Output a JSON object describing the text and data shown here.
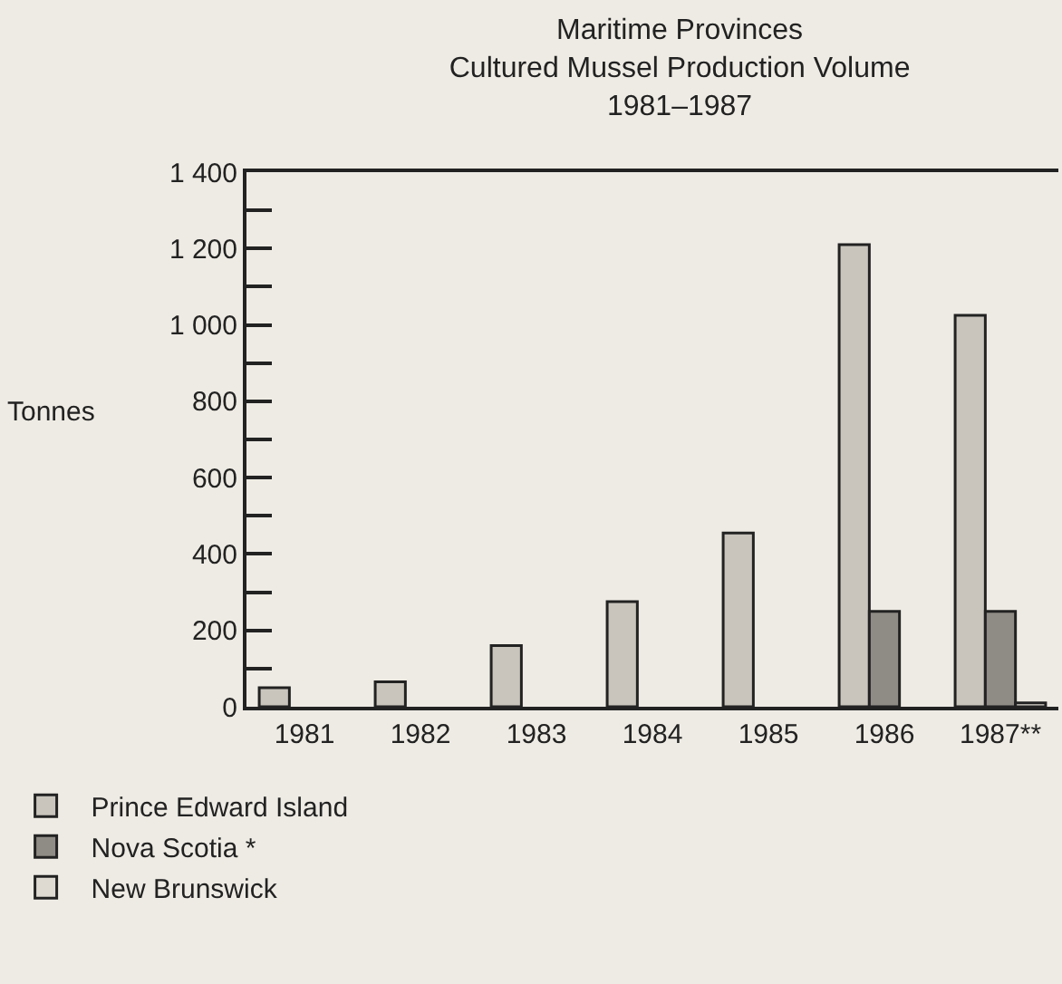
{
  "chart_data": {
    "type": "bar",
    "title": "Maritime Provinces\nCultured Mussel Production Volume\n1981–1987",
    "ylabel": "Tonnes",
    "categories": [
      "1981",
      "1982",
      "1983",
      "1984",
      "1985",
      "1986",
      "1987**"
    ],
    "series": [
      {
        "name": "Prince Edward Island",
        "color": "#c9c5bd",
        "values": [
          50,
          65,
          160,
          275,
          455,
          1210,
          1025
        ]
      },
      {
        "name": "Nova Scotia *",
        "color": "#8f8b85",
        "values": [
          null,
          null,
          null,
          null,
          null,
          250,
          250
        ]
      },
      {
        "name": "New Brunswick",
        "color": "#dedad2",
        "values": [
          null,
          null,
          null,
          null,
          null,
          null,
          10
        ]
      }
    ],
    "ylim": [
      0,
      1400
    ],
    "yticks": [
      0,
      {
        "value": 100,
        "label": null
      },
      200,
      {
        "value": 300,
        "label": null
      },
      400,
      {
        "value": 500,
        "label": null
      },
      600,
      {
        "value": 700,
        "label": null
      },
      800,
      {
        "value": 900,
        "label": null
      },
      {
        "value": 1000,
        "label": "1 000"
      },
      {
        "value": 1100,
        "label": null
      },
      {
        "value": 1200,
        "label": "1 200"
      },
      {
        "value": 1300,
        "label": null
      },
      {
        "value": 1400,
        "label": "1 400"
      }
    ],
    "grid": false,
    "legend": "bottom left"
  }
}
